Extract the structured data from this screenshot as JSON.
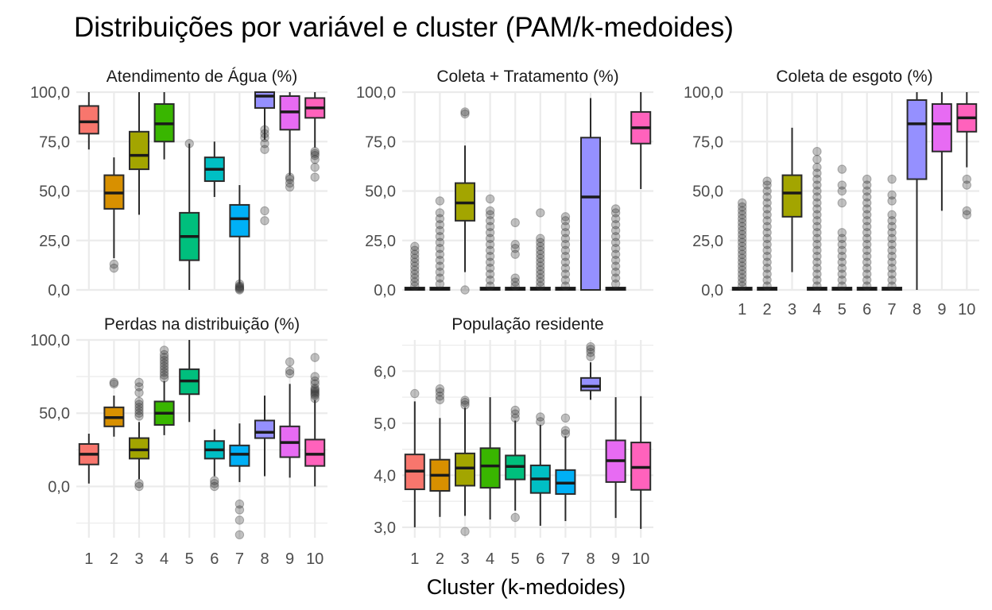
{
  "title": "Distribuições por variável e cluster (PAM/k-medoides)",
  "x_axis_title": "Cluster (k-medoides)",
  "colors": {
    "background": "#ffffff",
    "grid": "#ebebeb",
    "box_outline": "#2b2b2b",
    "outlier": "#333333",
    "clusters": [
      "#F8766D",
      "#D89000",
      "#A3A500",
      "#39B600",
      "#00BF7D",
      "#00BFC4",
      "#00B0F6",
      "#9590FF",
      "#E76BF3",
      "#FF62BC"
    ]
  },
  "chart_data": {
    "type": "boxplot",
    "categories": [
      "1",
      "2",
      "3",
      "4",
      "5",
      "6",
      "7",
      "8",
      "9",
      "10"
    ],
    "facets": [
      {
        "title": "Atendimento de Água (%)",
        "ylim": [
          0,
          100
        ],
        "y_ticks": [
          0,
          25,
          50,
          75,
          100
        ],
        "y_tick_labels": [
          "0,0",
          "25,0",
          "50,0",
          "75,0",
          "100,0"
        ],
        "show_x_labels": false,
        "boxes": [
          {
            "cluster": "1",
            "min": 71,
            "q1": 79,
            "median": 85,
            "q3": 93,
            "max": 100,
            "outliers": []
          },
          {
            "cluster": "2",
            "min": 16,
            "q1": 41,
            "median": 49,
            "q3": 58,
            "max": 67,
            "outliers": [
              11,
              13
            ]
          },
          {
            "cluster": "3",
            "min": 38,
            "q1": 61,
            "median": 68,
            "q3": 80,
            "max": 100,
            "outliers": []
          },
          {
            "cluster": "4",
            "min": 66,
            "q1": 75,
            "median": 84,
            "q3": 94,
            "max": 100,
            "outliers": []
          },
          {
            "cluster": "5",
            "min": 0,
            "q1": 15,
            "median": 27,
            "q3": 39,
            "max": 74,
            "outliers": [
              74
            ]
          },
          {
            "cluster": "6",
            "min": 47,
            "q1": 55,
            "median": 61,
            "q3": 67,
            "max": 75,
            "outliers": []
          },
          {
            "cluster": "7",
            "min": 3,
            "q1": 27,
            "median": 36,
            "q3": 43,
            "max": 53,
            "outliers": [
              0,
              0.5,
              1,
              1.5,
              2,
              3
            ]
          },
          {
            "cluster": "8",
            "min": 76,
            "q1": 92,
            "median": 98,
            "q3": 100,
            "max": 100,
            "outliers": [
              35,
              40,
              71,
              74,
              77,
              79,
              81
            ]
          },
          {
            "cluster": "9",
            "min": 58,
            "q1": 81,
            "median": 90,
            "q3": 98,
            "max": 100,
            "outliers": [
              52,
              54,
              56,
              57
            ]
          },
          {
            "cluster": "10",
            "min": 72,
            "q1": 87,
            "median": 92,
            "q3": 97,
            "max": 100,
            "outliers": [
              57,
              62,
              66,
              68,
              69,
              70
            ]
          }
        ]
      },
      {
        "title": "Coleta + Tratamento (%)",
        "ylim": [
          0,
          100
        ],
        "y_ticks": [
          0,
          25,
          50,
          75,
          100
        ],
        "y_tick_labels": [
          "0,0",
          "25,0",
          "50,0",
          "75,0",
          "100,0"
        ],
        "show_x_labels": false,
        "boxes": [
          {
            "cluster": "1",
            "min": 0,
            "q1": 0,
            "median": 0.5,
            "q3": 1,
            "max": 1,
            "outliers": [
              2,
              4,
              6,
              8,
              10,
              12,
              14,
              16,
              18,
              20,
              22
            ]
          },
          {
            "cluster": "2",
            "min": 0,
            "q1": 0,
            "median": 0.5,
            "q3": 1,
            "max": 1,
            "outliers": [
              3,
              6,
              9,
              12,
              15,
              18,
              21,
              24,
              27,
              30,
              33,
              36,
              39,
              45
            ]
          },
          {
            "cluster": "3",
            "min": 9,
            "q1": 35,
            "median": 44,
            "q3": 54,
            "max": 73,
            "outliers": [
              0,
              89,
              90
            ]
          },
          {
            "cluster": "4",
            "min": 0,
            "q1": 0,
            "median": 0.5,
            "q3": 1,
            "max": 1,
            "outliers": [
              2,
              5,
              8,
              11,
              14,
              17,
              20,
              23,
              26,
              29,
              32,
              35,
              38,
              40,
              46
            ]
          },
          {
            "cluster": "5",
            "min": 0,
            "q1": 0,
            "median": 0.5,
            "q3": 1,
            "max": 1,
            "outliers": [
              2,
              4,
              6,
              18,
              21,
              23,
              34
            ]
          },
          {
            "cluster": "6",
            "min": 0,
            "q1": 0,
            "median": 0.5,
            "q3": 1,
            "max": 1,
            "outliers": [
              2,
              4,
              6,
              8,
              10,
              12,
              14,
              16,
              18,
              20,
              22,
              24,
              26,
              39
            ]
          },
          {
            "cluster": "7",
            "min": 0,
            "q1": 0,
            "median": 0.5,
            "q3": 1,
            "max": 1,
            "outliers": [
              2,
              5,
              8,
              11,
              14,
              17,
              20,
              23,
              26,
              29,
              32,
              35,
              37
            ]
          },
          {
            "cluster": "8",
            "min": 0,
            "q1": 0,
            "median": 47,
            "q3": 77,
            "max": 97,
            "outliers": []
          },
          {
            "cluster": "9",
            "min": 0,
            "q1": 0,
            "median": 0.5,
            "q3": 1,
            "max": 1,
            "outliers": [
              3,
              6,
              9,
              12,
              15,
              18,
              21,
              24,
              27,
              30,
              33,
              36,
              39,
              41
            ]
          },
          {
            "cluster": "10",
            "min": 51,
            "q1": 74,
            "median": 82,
            "q3": 90,
            "max": 100,
            "outliers": []
          }
        ]
      },
      {
        "title": "Coleta de esgoto (%)",
        "ylim": [
          0,
          100
        ],
        "y_ticks": [
          0,
          25,
          50,
          75,
          100
        ],
        "y_tick_labels": [
          "0,0",
          "25,0",
          "50,0",
          "75,0",
          "100,0"
        ],
        "show_x_labels": true,
        "boxes": [
          {
            "cluster": "1",
            "min": 0,
            "q1": 0,
            "median": 0.5,
            "q3": 1,
            "max": 1,
            "outliers": [
              2,
              4,
              6,
              8,
              10,
              12,
              14,
              16,
              18,
              20,
              22,
              24,
              26,
              28,
              30,
              32,
              34,
              36,
              38,
              40,
              42,
              44
            ]
          },
          {
            "cluster": "2",
            "min": 0,
            "q1": 0,
            "median": 0.5,
            "q3": 1,
            "max": 1,
            "outliers": [
              2,
              5,
              8,
              11,
              14,
              17,
              20,
              23,
              26,
              29,
              32,
              35,
              38,
              41,
              44,
              47,
              50,
              53,
              55
            ]
          },
          {
            "cluster": "3",
            "min": 9,
            "q1": 37,
            "median": 49,
            "q3": 58,
            "max": 82,
            "outliers": []
          },
          {
            "cluster": "4",
            "min": 0,
            "q1": 0,
            "median": 0.5,
            "q3": 1,
            "max": 1,
            "outliers": [
              2,
              5,
              8,
              11,
              14,
              17,
              20,
              23,
              26,
              29,
              32,
              35,
              38,
              41,
              44,
              47,
              50,
              53,
              56,
              59,
              62,
              66,
              70
            ]
          },
          {
            "cluster": "5",
            "min": 0,
            "q1": 0,
            "median": 0.5,
            "q3": 1,
            "max": 1,
            "outliers": [
              2,
              5,
              8,
              11,
              14,
              17,
              20,
              23,
              26,
              29,
              44,
              50,
              53,
              61
            ]
          },
          {
            "cluster": "6",
            "min": 0,
            "q1": 0,
            "median": 0.5,
            "q3": 1,
            "max": 1,
            "outliers": [
              2,
              5,
              8,
              11,
              14,
              17,
              20,
              23,
              26,
              29,
              32,
              35,
              38,
              41,
              44,
              47,
              50,
              53,
              56
            ]
          },
          {
            "cluster": "7",
            "min": 0,
            "q1": 0,
            "median": 0.5,
            "q3": 1,
            "max": 1,
            "outliers": [
              2,
              5,
              8,
              11,
              14,
              17,
              20,
              23,
              26,
              29,
              32,
              35,
              38,
              45,
              48,
              56
            ]
          },
          {
            "cluster": "8",
            "min": 0,
            "q1": 56,
            "median": 84,
            "q3": 96,
            "max": 100,
            "outliers": []
          },
          {
            "cluster": "9",
            "min": 40,
            "q1": 70,
            "median": 84,
            "q3": 94,
            "max": 100,
            "outliers": []
          },
          {
            "cluster": "10",
            "min": 62,
            "q1": 80,
            "median": 87,
            "q3": 94,
            "max": 100,
            "outliers": [
              38,
              40,
              53,
              56
            ]
          }
        ]
      },
      {
        "title": "Perdas na distribuição (%)",
        "ylim": [
          -35,
          100
        ],
        "y_ticks": [
          0,
          50,
          100
        ],
        "y_minor_ticks": [
          -25,
          25,
          75
        ],
        "y_tick_labels": [
          "0,0",
          "50,0",
          "100,0"
        ],
        "show_x_labels": true,
        "boxes": [
          {
            "cluster": "1",
            "min": 2,
            "q1": 15,
            "median": 22,
            "q3": 29,
            "max": 36,
            "outliers": []
          },
          {
            "cluster": "2",
            "min": 34,
            "q1": 41,
            "median": 47,
            "q3": 54,
            "max": 62,
            "outliers": [
              70,
              71
            ]
          },
          {
            "cluster": "3",
            "min": 5,
            "q1": 19,
            "median": 25,
            "q3": 33,
            "max": 44,
            "outliers": [
              0,
              2,
              48,
              50,
              52,
              54,
              56,
              58,
              64,
              68,
              71
            ]
          },
          {
            "cluster": "4",
            "min": 35,
            "q1": 42,
            "median": 50,
            "q3": 58,
            "max": 72,
            "outliers": [
              74,
              76,
              78,
              80,
              82,
              84,
              86,
              88,
              90,
              93
            ]
          },
          {
            "cluster": "5",
            "min": 44,
            "q1": 63,
            "median": 72,
            "q3": 80,
            "max": 100,
            "outliers": []
          },
          {
            "cluster": "6",
            "min": 7,
            "q1": 19,
            "median": 25,
            "q3": 31,
            "max": 39,
            "outliers": [
              0,
              2,
              4
            ]
          },
          {
            "cluster": "7",
            "min": 3,
            "q1": 14,
            "median": 22,
            "q3": 28,
            "max": 43,
            "outliers": [
              -12,
              -16,
              -23,
              -33
            ]
          },
          {
            "cluster": "8",
            "min": 7,
            "q1": 33,
            "median": 37,
            "q3": 45,
            "max": 62,
            "outliers": []
          },
          {
            "cluster": "9",
            "min": 6,
            "q1": 20,
            "median": 30,
            "q3": 41,
            "max": 70,
            "outliers": [
              77,
              79,
              85
            ]
          },
          {
            "cluster": "10",
            "min": 0,
            "q1": 14,
            "median": 22,
            "q3": 32,
            "max": 59,
            "outliers": [
              60,
              62,
              63,
              64,
              65,
              66,
              67,
              70,
              72,
              75,
              88
            ]
          }
        ]
      },
      {
        "title": "População residente",
        "ylim": [
          2.8,
          6.6
        ],
        "y_ticks": [
          3,
          4,
          5,
          6
        ],
        "y_minor_ticks": [
          3.5,
          4.5,
          5.5,
          6.5
        ],
        "y_tick_labels": [
          "3,0",
          "4,0",
          "5,0",
          "6,0"
        ],
        "show_x_labels": true,
        "boxes": [
          {
            "cluster": "1",
            "min": 3.0,
            "q1": 3.73,
            "median": 4.08,
            "q3": 4.4,
            "max": 5.42,
            "outliers": [
              5.57
            ]
          },
          {
            "cluster": "2",
            "min": 3.2,
            "q1": 3.7,
            "median": 4.0,
            "q3": 4.3,
            "max": 5.1,
            "outliers": [
              5.45,
              5.52,
              5.6,
              5.66
            ]
          },
          {
            "cluster": "3",
            "min": 3.22,
            "q1": 3.8,
            "median": 4.14,
            "q3": 4.42,
            "max": 5.3,
            "outliers": [
              2.92,
              5.35,
              5.4,
              5.44
            ]
          },
          {
            "cluster": "4",
            "min": 3.15,
            "q1": 3.76,
            "median": 4.18,
            "q3": 4.52,
            "max": 5.5,
            "outliers": []
          },
          {
            "cluster": "5",
            "min": 3.32,
            "q1": 3.92,
            "median": 4.17,
            "q3": 4.38,
            "max": 5.05,
            "outliers": [
              3.19,
              5.1,
              5.18,
              5.25
            ]
          },
          {
            "cluster": "6",
            "min": 3.03,
            "q1": 3.66,
            "median": 3.93,
            "q3": 4.19,
            "max": 4.97,
            "outliers": [
              5.03,
              5.12
            ]
          },
          {
            "cluster": "7",
            "min": 3.12,
            "q1": 3.64,
            "median": 3.85,
            "q3": 4.1,
            "max": 4.75,
            "outliers": [
              4.8,
              4.86,
              5.1
            ]
          },
          {
            "cluster": "8",
            "min": 5.45,
            "q1": 5.63,
            "median": 5.71,
            "q3": 5.87,
            "max": 6.17,
            "outliers": [
              6.28,
              6.36,
              6.42,
              6.47
            ]
          },
          {
            "cluster": "9",
            "min": 3.18,
            "q1": 3.87,
            "median": 4.28,
            "q3": 4.67,
            "max": 5.5,
            "outliers": []
          },
          {
            "cluster": "10",
            "min": 2.97,
            "q1": 3.72,
            "median": 4.15,
            "q3": 4.63,
            "max": 5.52,
            "outliers": []
          }
        ]
      }
    ]
  }
}
